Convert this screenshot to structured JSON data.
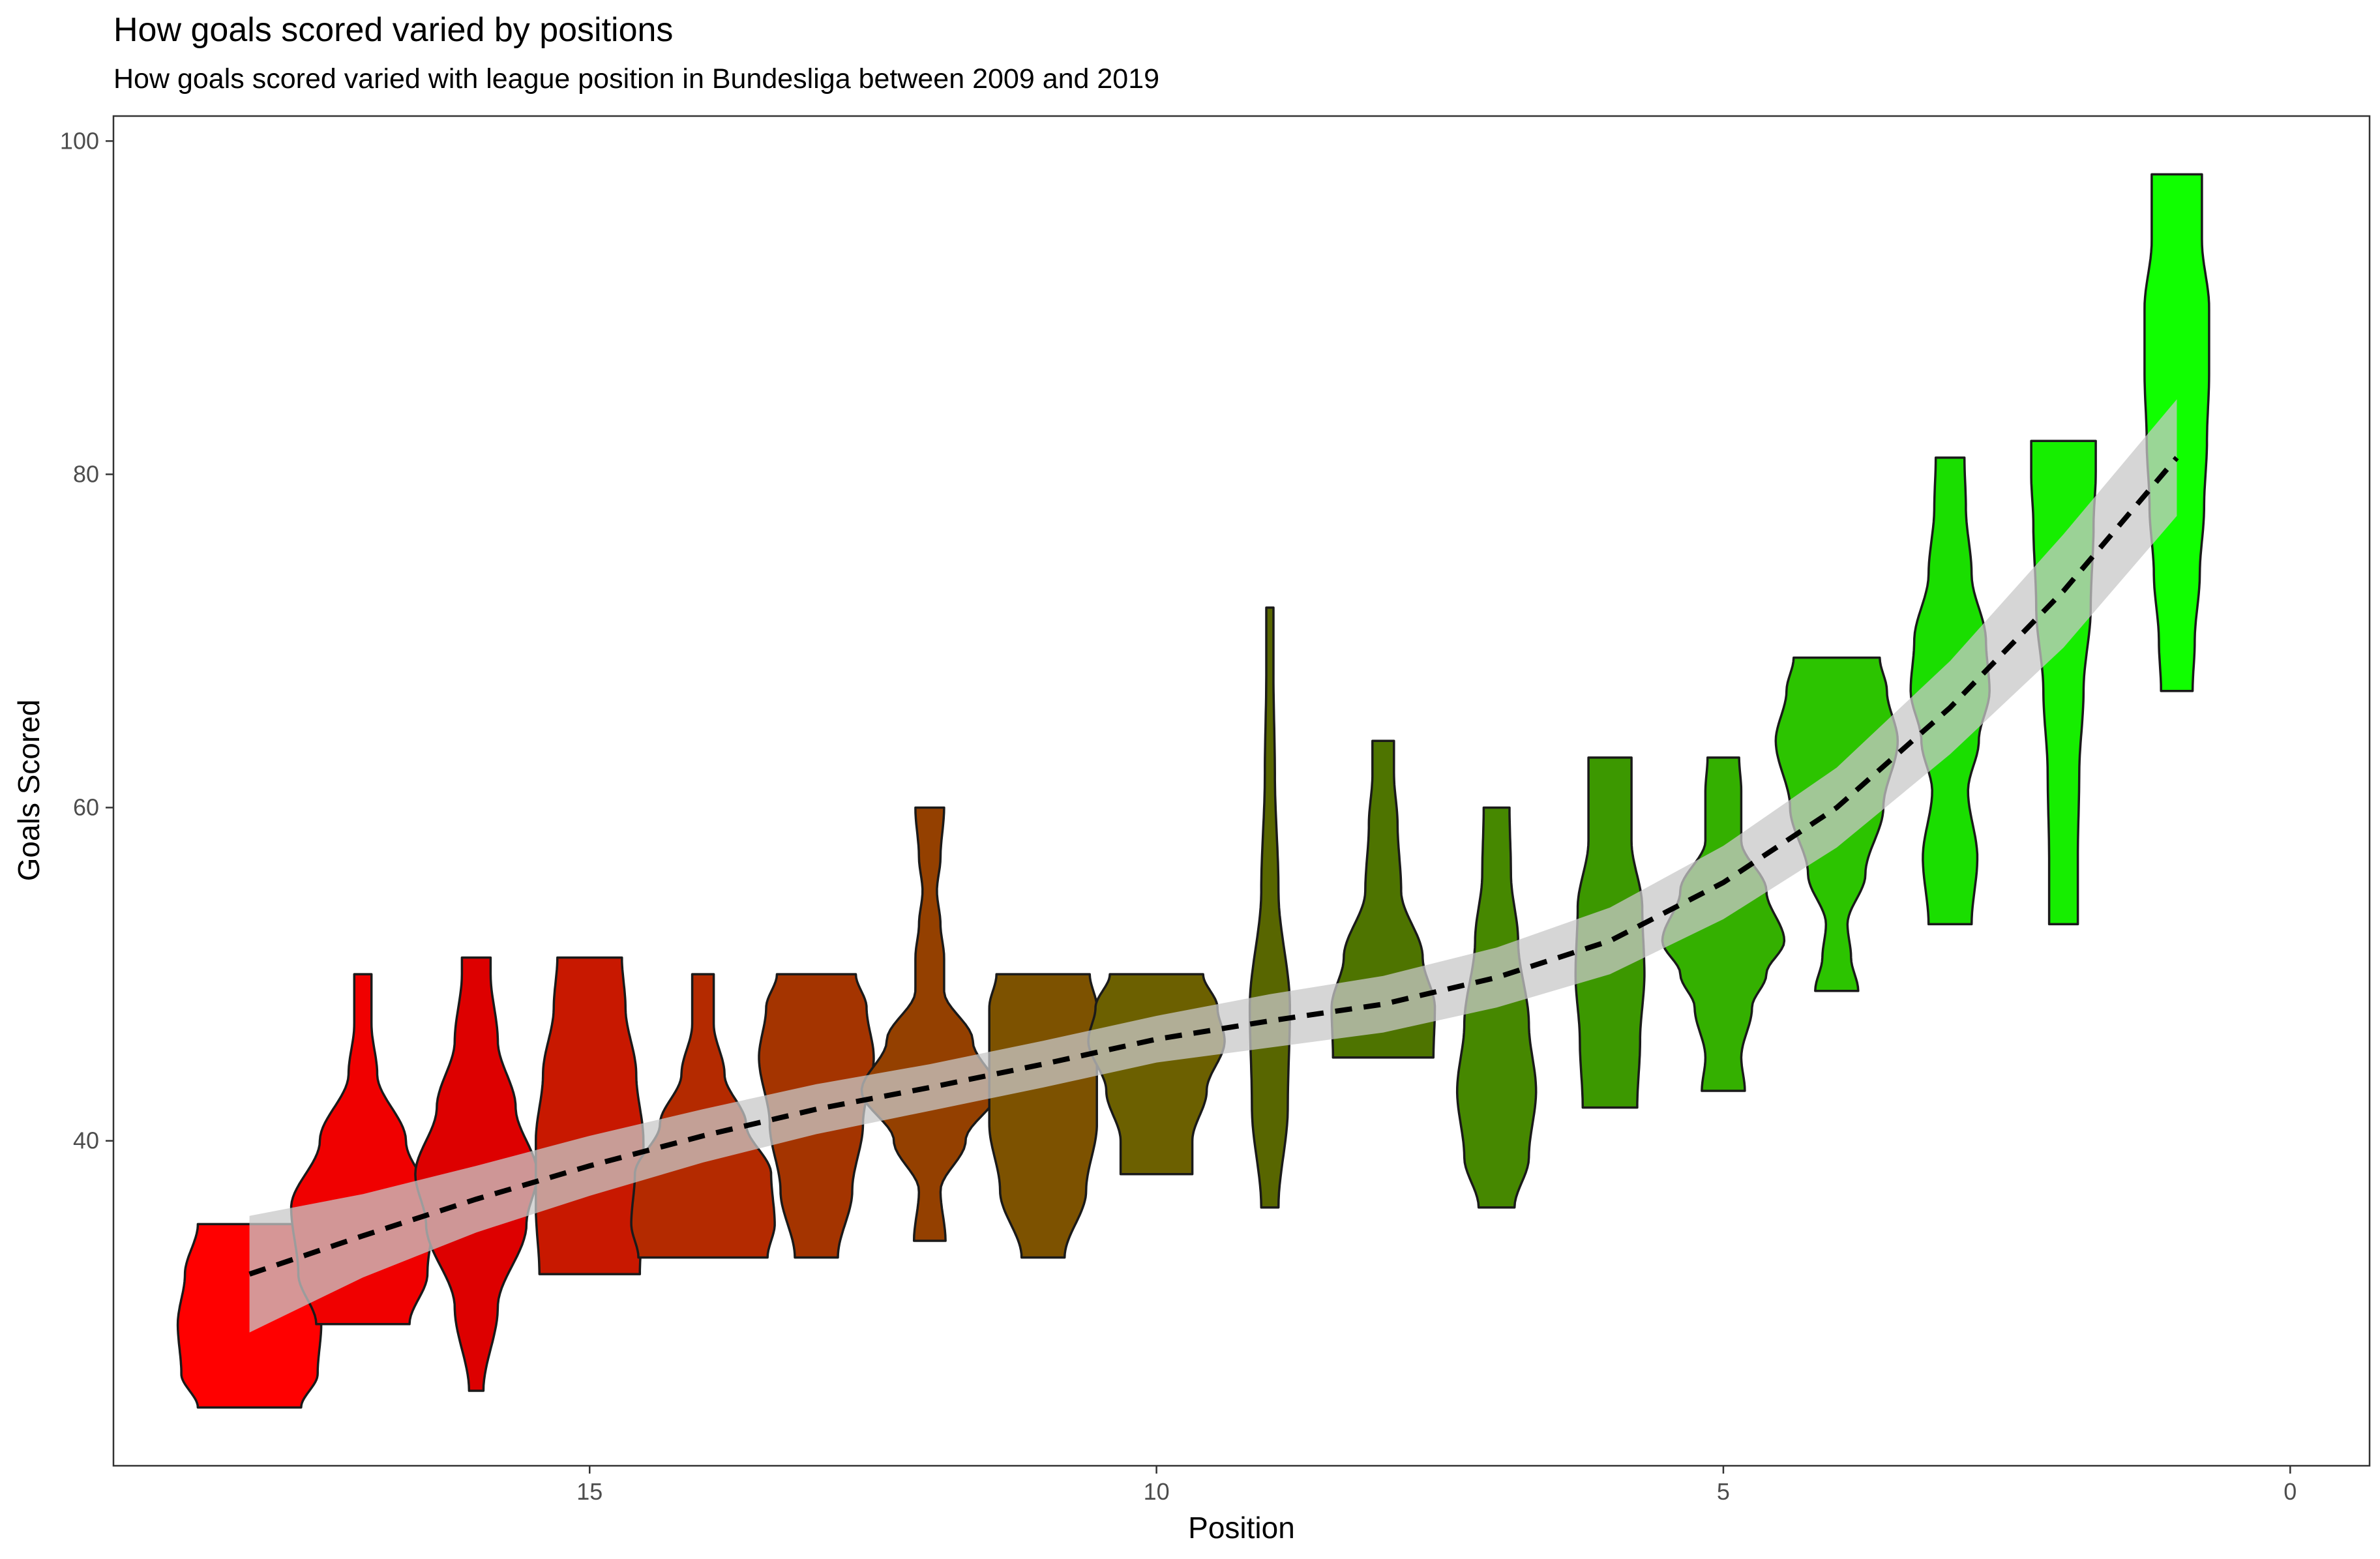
{
  "chart_data": {
    "type": "violin",
    "title": "How goals scored varied by positions",
    "subtitle": "How goals scored varied with league position in Bundesliga between 2009 and 2019",
    "xlabel": "Position",
    "ylabel": "Goals Scored",
    "xlim": [
      19.2,
      -0.7
    ],
    "ylim": [
      20.5,
      101.5
    ],
    "x_reversed": true,
    "x_ticks": [
      15,
      10,
      5,
      0
    ],
    "x_tick_labels": [
      "15",
      "10",
      "5",
      "0"
    ],
    "y_ticks": [
      40,
      60,
      80,
      100
    ],
    "y_tick_labels": [
      "40",
      "60",
      "80",
      "100"
    ],
    "grid": false,
    "legend": "none",
    "violins": [
      {
        "position": 18,
        "color": "#ff0000",
        "min": 24,
        "max": 35,
        "profile": [
          [
            24,
            0.72
          ],
          [
            26,
            0.95
          ],
          [
            29,
            1.0
          ],
          [
            32,
            0.9
          ],
          [
            35,
            0.72
          ]
        ]
      },
      {
        "position": 17,
        "color": "#f00000",
        "min": 29,
        "max": 50,
        "profile": [
          [
            29,
            0.65
          ],
          [
            32,
            0.9
          ],
          [
            36,
            1.0
          ],
          [
            40,
            0.6
          ],
          [
            44,
            0.2
          ],
          [
            47,
            0.12
          ],
          [
            50,
            0.12
          ]
        ]
      },
      {
        "position": 16,
        "color": "#dd0000",
        "min": 25,
        "max": 51,
        "profile": [
          [
            25,
            0.1
          ],
          [
            30,
            0.3
          ],
          [
            35,
            0.7
          ],
          [
            38,
            0.85
          ],
          [
            42,
            0.55
          ],
          [
            46,
            0.3
          ],
          [
            50,
            0.2
          ],
          [
            51,
            0.2
          ]
        ]
      },
      {
        "position": 15,
        "color": "#c81800",
        "min": 32,
        "max": 51,
        "profile": [
          [
            32,
            0.7
          ],
          [
            36,
            0.75
          ],
          [
            40,
            0.75
          ],
          [
            44,
            0.65
          ],
          [
            48,
            0.5
          ],
          [
            51,
            0.45
          ]
        ]
      },
      {
        "position": 14,
        "color": "#b42a00",
        "min": 33,
        "max": 50,
        "profile": [
          [
            33,
            0.9
          ],
          [
            35,
            1.0
          ],
          [
            38,
            0.95
          ],
          [
            41,
            0.6
          ],
          [
            44,
            0.3
          ],
          [
            47,
            0.15
          ],
          [
            50,
            0.15
          ]
        ]
      },
      {
        "position": 13,
        "color": "#a43400",
        "min": 33,
        "max": 50,
        "profile": [
          [
            33,
            0.3
          ],
          [
            37,
            0.5
          ],
          [
            41,
            0.65
          ],
          [
            45,
            0.8
          ],
          [
            48,
            0.7
          ],
          [
            50,
            0.55
          ]
        ]
      },
      {
        "position": 12,
        "color": "#944000",
        "min": 34,
        "max": 60,
        "profile": [
          [
            34,
            0.22
          ],
          [
            37,
            0.15
          ],
          [
            40,
            0.5
          ],
          [
            43,
            0.95
          ],
          [
            46,
            0.6
          ],
          [
            49,
            0.2
          ],
          [
            51,
            0.2
          ],
          [
            53,
            0.15
          ],
          [
            55,
            0.1
          ],
          [
            57,
            0.15
          ],
          [
            60,
            0.2
          ]
        ]
      },
      {
        "position": 11,
        "color": "#7d5200",
        "min": 33,
        "max": 50,
        "profile": [
          [
            33,
            0.3
          ],
          [
            37,
            0.6
          ],
          [
            41,
            0.75
          ],
          [
            45,
            0.75
          ],
          [
            48,
            0.75
          ],
          [
            50,
            0.65
          ]
        ]
      },
      {
        "position": 10,
        "color": "#6c6000",
        "min": 38,
        "max": 50,
        "profile": [
          [
            38,
            0.5
          ],
          [
            40,
            0.5
          ],
          [
            43,
            0.7
          ],
          [
            46,
            0.95
          ],
          [
            48,
            0.85
          ],
          [
            50,
            0.65
          ]
        ]
      },
      {
        "position": 9,
        "color": "#586600",
        "min": 36,
        "max": 72,
        "profile": [
          [
            36,
            0.12
          ],
          [
            42,
            0.25
          ],
          [
            48,
            0.28
          ],
          [
            55,
            0.12
          ],
          [
            62,
            0.07
          ],
          [
            68,
            0.05
          ],
          [
            72,
            0.05
          ]
        ]
      },
      {
        "position": 8,
        "color": "#4e7400",
        "min": 45,
        "max": 64,
        "profile": [
          [
            45,
            0.7
          ],
          [
            48,
            0.72
          ],
          [
            51,
            0.55
          ],
          [
            55,
            0.25
          ],
          [
            59,
            0.2
          ],
          [
            62,
            0.15
          ],
          [
            64,
            0.15
          ]
        ]
      },
      {
        "position": 7,
        "color": "#468800",
        "min": 36,
        "max": 60,
        "profile": [
          [
            36,
            0.25
          ],
          [
            39,
            0.45
          ],
          [
            43,
            0.55
          ],
          [
            47,
            0.45
          ],
          [
            52,
            0.3
          ],
          [
            56,
            0.2
          ],
          [
            60,
            0.18
          ]
        ]
      },
      {
        "position": 6,
        "color": "#3c9800",
        "min": 42,
        "max": 63,
        "profile": [
          [
            42,
            0.38
          ],
          [
            46,
            0.42
          ],
          [
            50,
            0.48
          ],
          [
            54,
            0.45
          ],
          [
            58,
            0.3
          ],
          [
            63,
            0.3
          ]
        ]
      },
      {
        "position": 5,
        "color": "#34b000",
        "min": 43,
        "max": 63,
        "profile": [
          [
            43,
            0.3
          ],
          [
            45,
            0.25
          ],
          [
            48,
            0.4
          ],
          [
            50,
            0.6
          ],
          [
            52,
            0.85
          ],
          [
            55,
            0.6
          ],
          [
            58,
            0.25
          ],
          [
            61,
            0.25
          ],
          [
            63,
            0.22
          ]
        ]
      },
      {
        "position": 4,
        "color": "#2cc400",
        "min": 49,
        "max": 69,
        "profile": [
          [
            49,
            0.3
          ],
          [
            51,
            0.2
          ],
          [
            53,
            0.15
          ],
          [
            56,
            0.4
          ],
          [
            60,
            0.65
          ],
          [
            64,
            0.85
          ],
          [
            67,
            0.7
          ],
          [
            69,
            0.6
          ]
        ]
      },
      {
        "position": 3,
        "color": "#1ade00",
        "min": 53,
        "max": 81,
        "profile": [
          [
            53,
            0.3
          ],
          [
            57,
            0.38
          ],
          [
            61,
            0.25
          ],
          [
            64,
            0.4
          ],
          [
            67,
            0.55
          ],
          [
            70,
            0.5
          ],
          [
            74,
            0.3
          ],
          [
            78,
            0.22
          ],
          [
            81,
            0.2
          ]
        ]
      },
      {
        "position": 2,
        "color": "#16ee00",
        "min": 53,
        "max": 82,
        "profile": [
          [
            53,
            0.2
          ],
          [
            57,
            0.2
          ],
          [
            62,
            0.22
          ],
          [
            67,
            0.28
          ],
          [
            72,
            0.38
          ],
          [
            77,
            0.42
          ],
          [
            80,
            0.45
          ],
          [
            82,
            0.45
          ]
        ]
      },
      {
        "position": 1,
        "color": "#10ff00",
        "min": 67,
        "max": 98,
        "profile": [
          [
            67,
            0.22
          ],
          [
            70,
            0.25
          ],
          [
            74,
            0.32
          ],
          [
            78,
            0.38
          ],
          [
            82,
            0.42
          ],
          [
            86,
            0.45
          ],
          [
            90,
            0.45
          ],
          [
            94,
            0.35
          ],
          [
            98,
            0.35
          ]
        ]
      }
    ],
    "trend": {
      "style": "dashed",
      "color": "#000000",
      "band_color": "#c8c8c8",
      "points": [
        {
          "x": 18,
          "y": 32.0,
          "lo": 28.5,
          "hi": 35.5
        },
        {
          "x": 17,
          "y": 34.3,
          "lo": 31.8,
          "hi": 36.8
        },
        {
          "x": 16,
          "y": 36.5,
          "lo": 34.5,
          "hi": 38.5
        },
        {
          "x": 15,
          "y": 38.5,
          "lo": 36.7,
          "hi": 40.3
        },
        {
          "x": 14,
          "y": 40.3,
          "lo": 38.7,
          "hi": 41.9
        },
        {
          "x": 13,
          "y": 41.9,
          "lo": 40.4,
          "hi": 43.4
        },
        {
          "x": 12,
          "y": 43.2,
          "lo": 41.8,
          "hi": 44.6
        },
        {
          "x": 11,
          "y": 44.6,
          "lo": 43.2,
          "hi": 46.0
        },
        {
          "x": 10,
          "y": 46.1,
          "lo": 44.7,
          "hi": 47.5
        },
        {
          "x": 9,
          "y": 47.2,
          "lo": 45.6,
          "hi": 48.8
        },
        {
          "x": 8,
          "y": 48.2,
          "lo": 46.5,
          "hi": 49.9
        },
        {
          "x": 7,
          "y": 49.8,
          "lo": 48.0,
          "hi": 51.6
        },
        {
          "x": 6,
          "y": 52.0,
          "lo": 50.0,
          "hi": 54.0
        },
        {
          "x": 5,
          "y": 55.5,
          "lo": 53.3,
          "hi": 57.7
        },
        {
          "x": 4,
          "y": 60.0,
          "lo": 57.6,
          "hi": 62.4
        },
        {
          "x": 3,
          "y": 66.0,
          "lo": 63.2,
          "hi": 68.8
        },
        {
          "x": 2,
          "y": 73.0,
          "lo": 69.6,
          "hi": 76.4
        },
        {
          "x": 1,
          "y": 81.0,
          "lo": 77.5,
          "hi": 84.5
        }
      ]
    }
  }
}
